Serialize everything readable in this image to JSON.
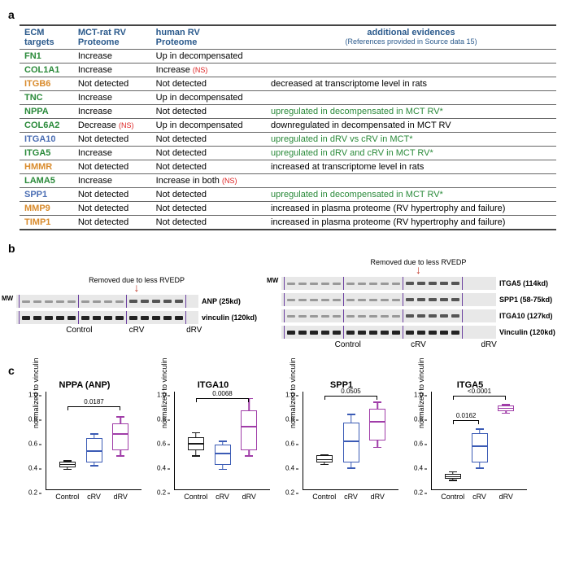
{
  "labels": {
    "panel_a": "a",
    "panel_b": "b",
    "panel_c": "c"
  },
  "table": {
    "headers": {
      "col1_l1": "ECM",
      "col1_l2": "targets",
      "col2_l1": "MCT-rat RV",
      "col2_l2": "Proteome",
      "col3_l1": "human RV",
      "col3_l2": "Proteome",
      "col4_l1": "additional evidences",
      "col4_sub": "(References provided in Source data 15)"
    },
    "rows": [
      {
        "gene": "FN1",
        "color": "#2a8a3a",
        "mct": "Increase",
        "human": "Up in decompensated",
        "evid": "",
        "evid_color": "#000"
      },
      {
        "gene": "COL1A1",
        "color": "#2a8a3a",
        "mct": "Increase",
        "human": "Increase",
        "human_ns": "(NS)",
        "evid": "",
        "evid_color": "#000"
      },
      {
        "gene": "ITGB6",
        "color": "#d98b2c",
        "mct": "Not detected",
        "human": "Not detected",
        "evid": "decreased at transcriptome level in rats",
        "evid_color": "#000"
      },
      {
        "gene": "TNC",
        "color": "#2a8a3a",
        "mct": "Increase",
        "human": "Up in decompensated",
        "evid": "",
        "evid_color": "#000"
      },
      {
        "gene": "NPPA",
        "color": "#2a8a3a",
        "mct": "Increase",
        "human": "Not detected",
        "evid": "upregulated in decompensated in MCT RV*",
        "evid_color": "#2a8a3a"
      },
      {
        "gene": "COL6A2",
        "color": "#2a8a3a",
        "mct": "Decrease",
        "mct_ns": "(NS)",
        "human": "Up in decompensated",
        "evid": "downregulated in decompensated in MCT RV",
        "evid_color": "#000"
      },
      {
        "gene": "ITGA10",
        "color": "#4a6db3",
        "mct": "Not detected",
        "human": "Not detected",
        "evid": "upregulated in dRV vs cRV in MCT*",
        "evid_color": "#2a8a3a"
      },
      {
        "gene": "ITGA5",
        "color": "#2a8a3a",
        "mct": "Increase",
        "human": "Not detected",
        "evid": "upregulated in dRV and cRV in MCT RV*",
        "evid_color": "#2a8a3a"
      },
      {
        "gene": "HMMR",
        "color": "#d98b2c",
        "mct": "Not detected",
        "human": "Not detected",
        "evid": "increased at transcriptome level in rats",
        "evid_color": "#000"
      },
      {
        "gene": "LAMA5",
        "color": "#2a8a3a",
        "mct": "Increase",
        "human": "Increase in both",
        "human_ns": "(NS)",
        "evid": "",
        "evid_color": "#000"
      },
      {
        "gene": "SPP1",
        "color": "#4a6db3",
        "mct": "Not detected",
        "human": "Not detected",
        "evid": "upregulated in decompensated in MCT RV*",
        "evid_color": "#2a8a3a"
      },
      {
        "gene": "MMP9",
        "color": "#d98b2c",
        "mct": "Not detected",
        "human": "Not detected",
        "evid": "increased in plasma proteome (RV hypertrophy and failure)",
        "evid_color": "#000"
      },
      {
        "gene": "TIMP1",
        "color": "#d98b2c",
        "mct": "Not detected",
        "human": "Not detected",
        "evid": "increased in plasma proteome (RV hypertrophy and failure)",
        "evid_color": "#000"
      }
    ]
  },
  "blots": {
    "note": "Removed due to less RVEDP",
    "mw": "MW",
    "conditions": [
      "Control",
      "cRV",
      "dRV"
    ],
    "left": [
      {
        "name": "ANP (25kd)"
      },
      {
        "name": "vinculin (120kd)"
      }
    ],
    "right": [
      {
        "name": "ITGA5 (114kd)"
      },
      {
        "name": "SPP1 (58-75kd)"
      },
      {
        "name": "ITGA10 (127kd)"
      },
      {
        "name": "Vinculin (120kd)"
      }
    ]
  },
  "charts": {
    "ylabel": "normalized to vinculin",
    "xcats": [
      "Control",
      "cRV",
      "dRV"
    ],
    "colors": {
      "control": "#1a1a1a",
      "crv": "#3b5bb5",
      "drv": "#a03da8"
    },
    "items": [
      {
        "title": "NPPA (ANP)",
        "ylim": [
          0.2,
          1.0
        ],
        "yticks": [
          0.2,
          0.4,
          0.6,
          0.8,
          1.0
        ],
        "pvals": [
          {
            "from": 0,
            "to": 2,
            "text": "0.0187",
            "y": 0.88
          }
        ],
        "boxes": [
          {
            "group": "control",
            "q1": 0.38,
            "med": 0.41,
            "q3": 0.43,
            "lo": 0.37,
            "hi": 0.44
          },
          {
            "group": "crv",
            "q1": 0.42,
            "med": 0.52,
            "q3": 0.62,
            "lo": 0.4,
            "hi": 0.66
          },
          {
            "group": "drv",
            "q1": 0.52,
            "med": 0.66,
            "q3": 0.74,
            "lo": 0.48,
            "hi": 0.8
          }
        ]
      },
      {
        "title": "ITGA10",
        "ylim": [
          0.2,
          1.0
        ],
        "yticks": [
          0.2,
          0.4,
          0.6,
          0.8,
          1.0
        ],
        "pvals": [
          {
            "from": 0,
            "to": 2,
            "text": "0.0068",
            "y": 0.95
          }
        ],
        "boxes": [
          {
            "group": "control",
            "q1": 0.52,
            "med": 0.58,
            "q3": 0.63,
            "lo": 0.48,
            "hi": 0.67
          },
          {
            "group": "crv",
            "q1": 0.4,
            "med": 0.5,
            "q3": 0.57,
            "lo": 0.37,
            "hi": 0.6
          },
          {
            "group": "drv",
            "q1": 0.52,
            "med": 0.72,
            "q3": 0.85,
            "lo": 0.48,
            "hi": 0.95
          }
        ]
      },
      {
        "title": "SPP1",
        "ylim": [
          0.2,
          1.0
        ],
        "yticks": [
          0.2,
          0.4,
          0.6,
          0.8,
          1.0
        ],
        "pvals": [
          {
            "from": 0,
            "to": 2,
            "text": "0.0505",
            "y": 0.97
          }
        ],
        "boxes": [
          {
            "group": "control",
            "q1": 0.42,
            "med": 0.45,
            "q3": 0.48,
            "lo": 0.41,
            "hi": 0.49
          },
          {
            "group": "crv",
            "q1": 0.42,
            "med": 0.6,
            "q3": 0.75,
            "lo": 0.38,
            "hi": 0.82
          },
          {
            "group": "drv",
            "q1": 0.6,
            "med": 0.76,
            "q3": 0.86,
            "lo": 0.55,
            "hi": 0.92
          }
        ]
      },
      {
        "title": "ITGA5",
        "ylim": [
          0.2,
          1.0
        ],
        "yticks": [
          0.2,
          0.4,
          0.6,
          0.8,
          1.0
        ],
        "pvals": [
          {
            "from": 0,
            "to": 2,
            "text": "<0.0001",
            "y": 0.97
          },
          {
            "from": 0,
            "to": 1,
            "text": "0.0162",
            "y": 0.77
          }
        ],
        "boxes": [
          {
            "group": "control",
            "q1": 0.29,
            "med": 0.31,
            "q3": 0.33,
            "lo": 0.28,
            "hi": 0.35
          },
          {
            "group": "crv",
            "q1": 0.42,
            "med": 0.56,
            "q3": 0.66,
            "lo": 0.38,
            "hi": 0.7
          },
          {
            "group": "drv",
            "q1": 0.84,
            "med": 0.87,
            "q3": 0.89,
            "lo": 0.83,
            "hi": 0.9
          }
        ]
      }
    ]
  }
}
